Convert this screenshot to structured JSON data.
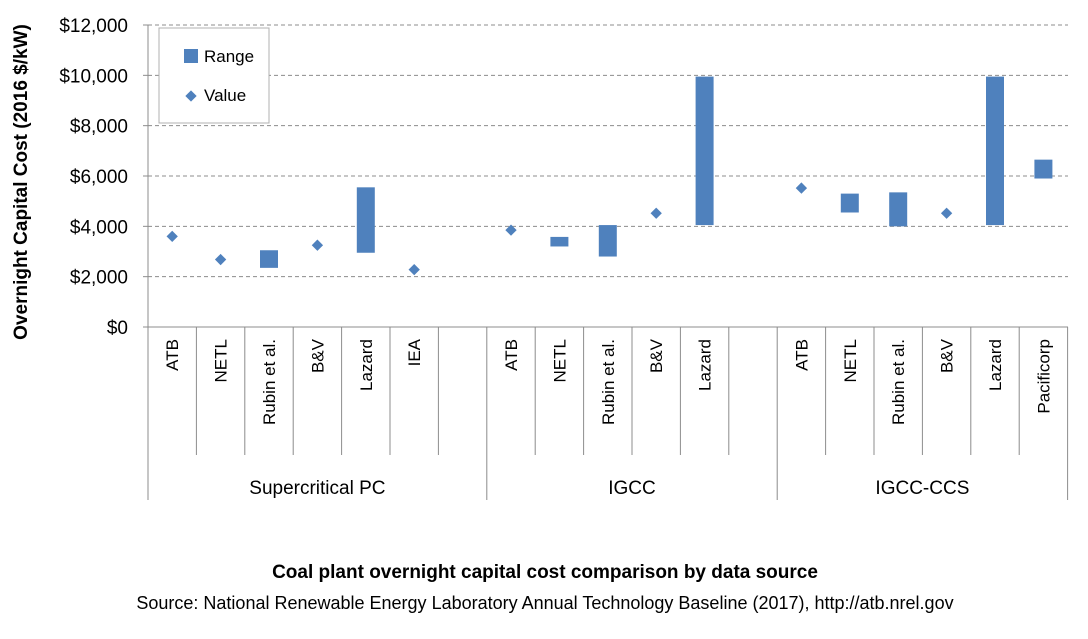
{
  "chart_data": {
    "type": "range_and_point",
    "title": "Coal plant overnight capital cost comparison by data source",
    "source": "Source: National Renewable Energy Laboratory Annual Technology Baseline (2017), http://atb.nrel.gov",
    "ylabel": "Overnight Capital Cost (2016 $/kW)",
    "ylim": [
      0,
      12000
    ],
    "yticks": [
      0,
      2000,
      4000,
      6000,
      8000,
      10000,
      12000
    ],
    "ytick_labels": [
      "$0",
      "$2,000",
      "$4,000",
      "$6,000",
      "$8,000",
      "$10,000",
      "$12,000"
    ],
    "grid": true,
    "legend": {
      "position": "top-left",
      "entries": [
        {
          "name": "Range",
          "marker": "bar"
        },
        {
          "name": "Value",
          "marker": "diamond"
        }
      ]
    },
    "color": "#4f81bd",
    "groups": [
      {
        "name": "Supercritical PC",
        "categories": [
          {
            "label": "ATB",
            "value": 3600
          },
          {
            "label": "NETL",
            "value": 2680
          },
          {
            "label": "Rubin et al.",
            "range": [
              2350,
              3050
            ]
          },
          {
            "label": "B&V",
            "value": 3250
          },
          {
            "label": "Lazard",
            "range": [
              2950,
              5550
            ]
          },
          {
            "label": "IEA",
            "value": 2280
          },
          {
            "label": ""
          }
        ]
      },
      {
        "name": "IGCC",
        "categories": [
          {
            "label": "ATB",
            "value": 3850
          },
          {
            "label": "NETL",
            "range": [
              3200,
              3580
            ]
          },
          {
            "label": "Rubin et al.",
            "range": [
              2800,
              4050
            ]
          },
          {
            "label": "B&V",
            "value": 4520
          },
          {
            "label": "Lazard",
            "range": [
              4050,
              9950
            ]
          },
          {
            "label": ""
          }
        ]
      },
      {
        "name": "IGCC-CCS",
        "categories": [
          {
            "label": "ATB",
            "value": 5520
          },
          {
            "label": "NETL",
            "range": [
              4550,
              5300
            ]
          },
          {
            "label": "Rubin et al.",
            "range": [
              4000,
              5350
            ]
          },
          {
            "label": "B&V",
            "value": 4520
          },
          {
            "label": "Lazard",
            "range": [
              4050,
              9950
            ]
          },
          {
            "label": "Pacificorp",
            "range": [
              5900,
              6650
            ]
          }
        ]
      }
    ]
  }
}
